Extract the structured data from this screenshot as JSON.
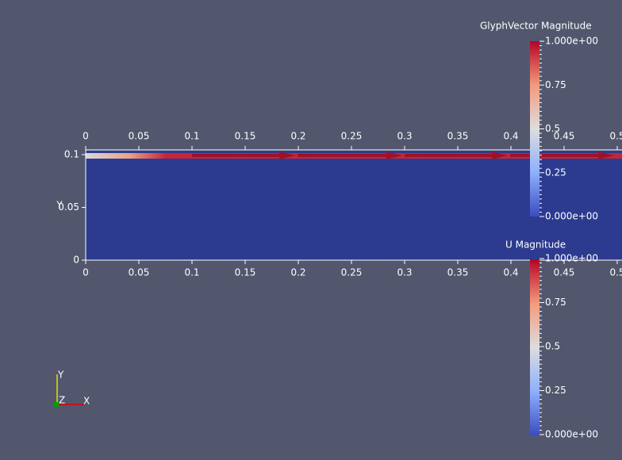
{
  "view": {
    "x_axis": {
      "labels": [
        "0",
        "0.05",
        "0.1",
        "0.15",
        "0.2",
        "0.25",
        "0.3",
        "0.35",
        "0.4",
        "0.45",
        "0.5"
      ]
    },
    "y_axis": {
      "title": "Y",
      "labels": [
        "0.1",
        "0.05",
        "0"
      ]
    },
    "color_bars": [
      {
        "title": "GlyphVector Magnitude",
        "labels": [
          "1.000e+00",
          "0.75",
          "0.5",
          "0.25",
          "0.000e+00"
        ]
      },
      {
        "title": "U Magnitude",
        "labels": [
          "1.000e+00",
          "0.75",
          "0.5",
          "0.25",
          "0.000e+00"
        ]
      }
    ],
    "orientation_axes": {
      "x": "X",
      "y": "Y",
      "z": "Z"
    }
  }
}
